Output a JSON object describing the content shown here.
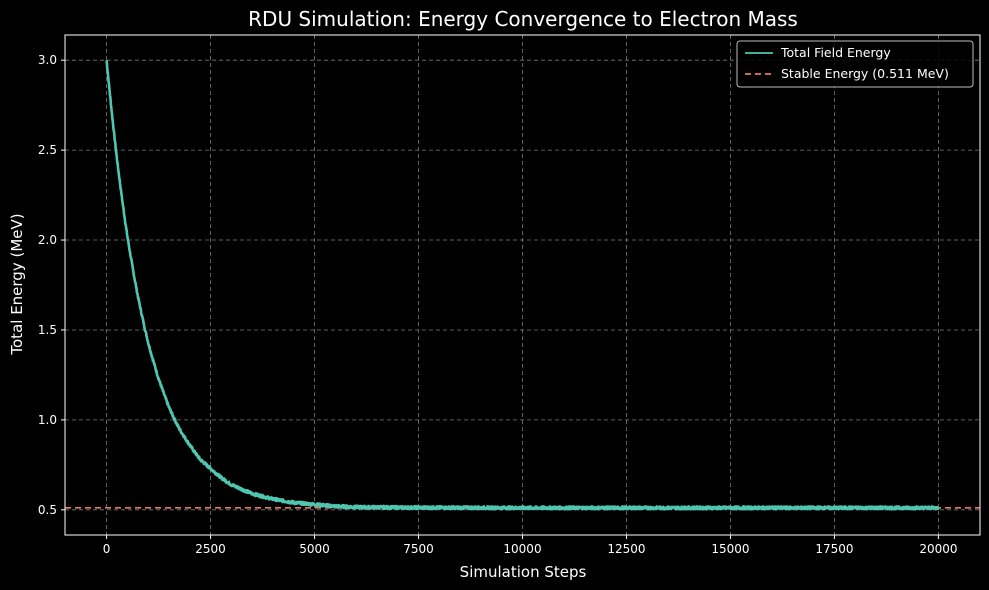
{
  "chart_data": {
    "type": "line",
    "title": "RDU Simulation: Energy Convergence to Electron Mass",
    "xlabel": "Simulation Steps",
    "ylabel": "Total Energy (MeV)",
    "xlim": [
      -1000,
      21000
    ],
    "ylim": [
      0.36,
      3.14
    ],
    "xticks": [
      0,
      2500,
      5000,
      7500,
      10000,
      12500,
      15000,
      17500,
      20000
    ],
    "yticks": [
      0.5,
      1.0,
      1.5,
      2.0,
      2.5,
      3.0
    ],
    "xtick_labels": [
      "0",
      "2500",
      "5000",
      "7500",
      "10000",
      "12500",
      "15000",
      "17500",
      "20000"
    ],
    "ytick_labels": [
      "0.5",
      "1.0",
      "1.5",
      "2.0",
      "2.5",
      "3.0"
    ],
    "grid": true,
    "legend_position": "top-right",
    "background": "#000000",
    "series": [
      {
        "name": "Total Field Energy",
        "color": "#4fc7b0",
        "style": "solid",
        "x": [
          0,
          250,
          500,
          750,
          1000,
          1250,
          1500,
          1750,
          2000,
          2250,
          2500,
          2750,
          3000,
          3500,
          4000,
          4500,
          5000,
          5500,
          6000,
          7000,
          8000,
          10000,
          12500,
          15000,
          17500,
          20000
        ],
        "y": [
          3.0,
          2.45,
          2.02,
          1.69,
          1.43,
          1.23,
          1.07,
          0.95,
          0.86,
          0.78,
          0.73,
          0.68,
          0.64,
          0.59,
          0.56,
          0.54,
          0.53,
          0.52,
          0.515,
          0.513,
          0.512,
          0.511,
          0.511,
          0.511,
          0.511,
          0.511
        ]
      },
      {
        "name": "Stable Energy (0.511 MeV)",
        "color": "#e87a5d",
        "style": "dashed",
        "value": 0.511
      }
    ]
  }
}
